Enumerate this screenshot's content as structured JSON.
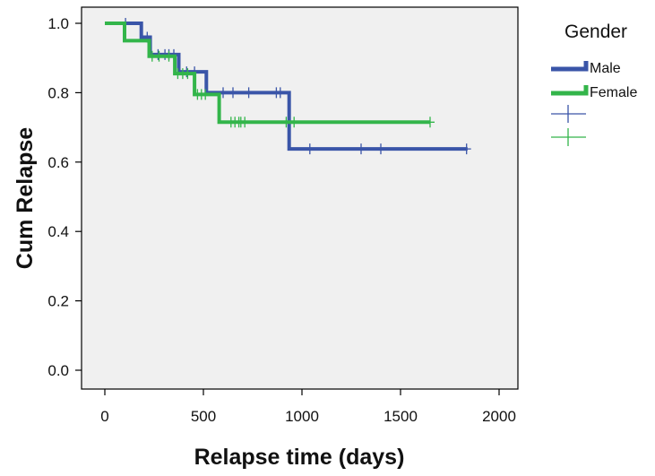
{
  "chart_data": {
    "type": "line",
    "subtype": "kaplan-meier step survival",
    "xlabel": "Relapse time (days)",
    "ylabel": "Cum Relapse",
    "xlim": [
      0,
      2000
    ],
    "ylim": [
      0.0,
      1.0
    ],
    "x_ticks": [
      0,
      500,
      1000,
      1500,
      2000
    ],
    "x_tick_labels": [
      "0",
      "500",
      "1000",
      "1500",
      "2000"
    ],
    "y_ticks": [
      0.0,
      0.2,
      0.4,
      0.6,
      0.8,
      1.0
    ],
    "y_tick_labels": [
      "0.0",
      "0.2",
      "0.4",
      "0.6",
      "0.8",
      "1.0"
    ],
    "grid": false,
    "plot_background": "#f0f0f0",
    "legend": {
      "title": "Gender",
      "placement": "right",
      "entries": [
        {
          "label": "Male",
          "kind": "step"
        },
        {
          "label": "Female",
          "kind": "step"
        },
        {
          "label": "",
          "kind": "censor",
          "series": "Male"
        },
        {
          "label": "",
          "kind": "censor",
          "series": "Female"
        }
      ]
    },
    "series": [
      {
        "name": "Male",
        "color": "#3a55a8",
        "steps": [
          [
            0,
            1.0
          ],
          [
            185,
            0.96
          ],
          [
            230,
            0.91
          ],
          [
            375,
            0.86
          ],
          [
            515,
            0.8
          ],
          [
            935,
            0.638
          ],
          [
            1840,
            0.638
          ]
        ],
        "censored": [
          [
            105,
            1.0
          ],
          [
            215,
            0.96
          ],
          [
            270,
            0.91
          ],
          [
            305,
            0.91
          ],
          [
            325,
            0.91
          ],
          [
            350,
            0.91
          ],
          [
            415,
            0.86
          ],
          [
            455,
            0.86
          ],
          [
            600,
            0.8
          ],
          [
            650,
            0.8
          ],
          [
            730,
            0.8
          ],
          [
            870,
            0.8
          ],
          [
            890,
            0.8
          ],
          [
            1040,
            0.638
          ],
          [
            1300,
            0.638
          ],
          [
            1400,
            0.638
          ],
          [
            1835,
            0.638
          ]
        ]
      },
      {
        "name": "Female",
        "color": "#33b54a",
        "steps": [
          [
            0,
            1.0
          ],
          [
            100,
            0.95
          ],
          [
            225,
            0.905
          ],
          [
            355,
            0.855
          ],
          [
            455,
            0.795
          ],
          [
            580,
            0.715
          ],
          [
            1650,
            0.715
          ]
        ],
        "censored": [
          [
            240,
            0.905
          ],
          [
            275,
            0.905
          ],
          [
            325,
            0.905
          ],
          [
            370,
            0.855
          ],
          [
            395,
            0.855
          ],
          [
            420,
            0.855
          ],
          [
            470,
            0.795
          ],
          [
            490,
            0.795
          ],
          [
            510,
            0.795
          ],
          [
            640,
            0.715
          ],
          [
            660,
            0.715
          ],
          [
            680,
            0.715
          ],
          [
            690,
            0.715
          ],
          [
            710,
            0.715
          ],
          [
            920,
            0.715
          ],
          [
            960,
            0.715
          ],
          [
            1650,
            0.715
          ]
        ]
      }
    ]
  }
}
